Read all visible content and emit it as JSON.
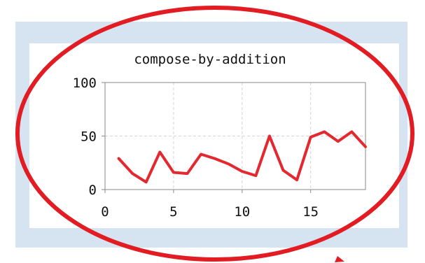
{
  "colors": {
    "frame": "#d6e3f1",
    "panel": "#ffffff",
    "plot_border": "#8a8a8a",
    "grid": "#d4d4d4",
    "series": "#e3282f",
    "annotation": "#e21c23"
  },
  "chart_data": {
    "type": "line",
    "title": "compose-by-addition",
    "xlabel": "",
    "ylabel": "",
    "xlim": [
      0,
      19
    ],
    "ylim": [
      0,
      100
    ],
    "grid": true,
    "legend": "none",
    "x_ticks": [
      "0",
      "5",
      "10",
      "15"
    ],
    "x_tick_values": [
      0,
      5,
      10,
      15
    ],
    "y_ticks": [
      "0",
      "50",
      "100"
    ],
    "y_tick_values": [
      0,
      50,
      100
    ],
    "series": [
      {
        "x": [
          1,
          2,
          3,
          4,
          5,
          6,
          7,
          8,
          9,
          10,
          11,
          12,
          13,
          14,
          15,
          16,
          17,
          18,
          19
        ],
        "values": [
          29,
          15,
          7,
          35,
          16,
          15,
          33,
          29,
          24,
          17,
          13,
          50,
          18,
          9,
          49,
          54,
          45,
          54,
          40
        ]
      }
    ]
  },
  "annotation": {
    "shape": "ellipse",
    "extra_mark": "arrow-tip"
  }
}
